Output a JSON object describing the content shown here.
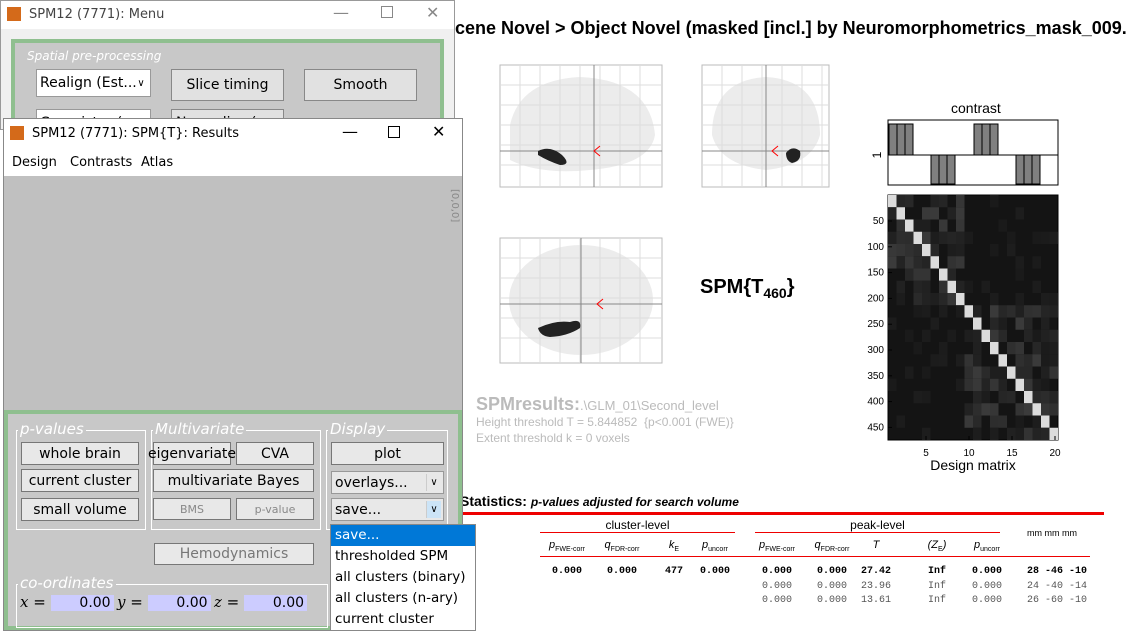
{
  "menu_window": {
    "title": "SPM12 (7771): Menu",
    "group_label": "Spatial pre-processing",
    "buttons": [
      "Realign (Est...",
      "Slice timing",
      "Smooth",
      "Coregister (",
      "Normalise ("
    ]
  },
  "results_window": {
    "title": "SPM12 (7771): SPM{T}: Results",
    "menu": [
      "Design",
      "Contrasts",
      "Atlas"
    ],
    "p_values": {
      "label": "p-values",
      "buttons": [
        "whole brain",
        "current cluster",
        "small volume"
      ]
    },
    "multivariate": {
      "label": "Multivariate",
      "buttons": [
        "eigenvariate",
        "CVA",
        "multivariate Bayes",
        "BMS",
        "p-value"
      ]
    },
    "display": {
      "label": "Display",
      "buttons": [
        "plot",
        "overlays...",
        "save..."
      ]
    },
    "hemodynamics": "Hemodynamics",
    "coordinates": {
      "label": "co-ordinates",
      "fields": [
        {
          "name": "x",
          "value": "0.00"
        },
        {
          "name": "y",
          "value": "0.00"
        },
        {
          "name": "z",
          "value": "0.00"
        }
      ]
    },
    "side_label": "[0,0,0]"
  },
  "dropdown": {
    "items": [
      "save...",
      "thresholded SPM",
      "all clusters (binary)",
      "all clusters (n-ary)",
      "current cluster"
    ]
  },
  "graphics": {
    "title": "cene Novel > Object Novel  (masked [incl.] by Neuromorphometrics_mask_009.",
    "spm_label": "SPM{T",
    "spm_sub": "460",
    "spm_close": "}",
    "contrast_label": "contrast",
    "contrast_tick": "1",
    "matrix_yticks": [
      "50",
      "100",
      "150",
      "200",
      "250",
      "300",
      "350",
      "400",
      "450"
    ],
    "matrix_xticks": [
      "5",
      "10",
      "15",
      "20"
    ],
    "matrix_label": "Design matrix",
    "results_label": "SPMresults:",
    "results_path": ".\\GLM_01\\Second_level",
    "height_threshold": "Height threshold T = 5.844852  {p<0.001 (FWE)}",
    "extent_threshold": "Extent threshold k = 0 voxels"
  },
  "table": {
    "title": "Statistics:",
    "subtitle": "p-values adjusted for search volume",
    "cluster_level": "cluster-level",
    "peak_level": "peak-level",
    "mm": "mm mm mm",
    "cluster_headers": [
      {
        "main": "p",
        "sub": "FWE-corr"
      },
      {
        "main": "q",
        "sub": "FDR-corr"
      },
      {
        "main": "k",
        "sub": "E"
      },
      {
        "main": "p",
        "sub": "uncorr"
      }
    ],
    "peak_headers": [
      {
        "main": "p",
        "sub": "FWE-corr"
      },
      {
        "main": "q",
        "sub": "FDR-corr"
      },
      {
        "main": "T"
      },
      {
        "main": "(Z",
        "sub": "E",
        "tail": ")"
      },
      {
        "main": "p",
        "sub": "uncorr"
      }
    ],
    "rows": [
      {
        "cluster": [
          "0.000",
          "0.000",
          "477",
          "0.000"
        ],
        "peak": [
          "0.000",
          "0.000",
          "27.42",
          "Inf",
          "0.000"
        ],
        "mm": "28 -46 -10"
      },
      {
        "peak": [
          "0.000",
          "0.000",
          "23.96",
          "Inf",
          "0.000"
        ],
        "mm": "24 -40 -14"
      },
      {
        "peak": [
          "0.000",
          "0.000",
          "13.61",
          "Inf",
          "0.000"
        ],
        "mm": "26 -60 -10"
      }
    ]
  }
}
